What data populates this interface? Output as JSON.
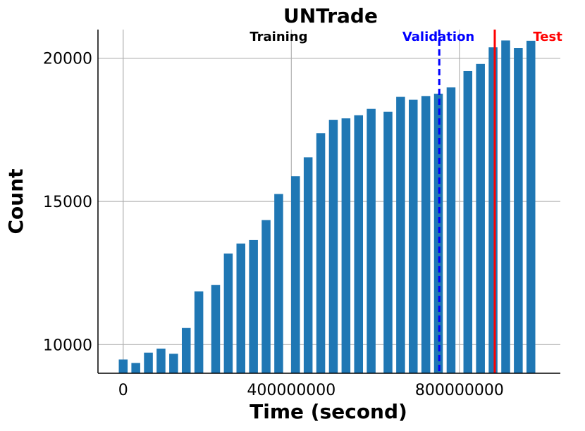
{
  "chart_data": {
    "type": "bar",
    "title": "UNTrade",
    "xlabel": "Time (second)",
    "ylabel": "Count",
    "xlim": [
      -60000000,
      1040000000
    ],
    "ylim": [
      9000,
      21000
    ],
    "xticks": [
      0,
      400000000,
      800000000
    ],
    "xtick_labels": [
      "0",
      "400000000",
      "800000000"
    ],
    "yticks": [
      10000,
      15000,
      20000
    ],
    "ytick_labels": [
      "10000",
      "15000",
      "20000"
    ],
    "grid": true,
    "bar_color": "#1f77b4",
    "bar_width": 21000000,
    "x": [
      0,
      30000000,
      60000000,
      90000000,
      120000000,
      150000000,
      180000000,
      220000000,
      250000000,
      280000000,
      310000000,
      340000000,
      370000000,
      410000000,
      440000000,
      470000000,
      500000000,
      530000000,
      560000000,
      590000000,
      630000000,
      660000000,
      690000000,
      720000000,
      750000000,
      780000000,
      820000000,
      850000000,
      880000000,
      910000000,
      940000000,
      970000000
    ],
    "values": [
      9480,
      9360,
      9720,
      9860,
      9680,
      10580,
      11860,
      12080,
      13180,
      13530,
      13650,
      14350,
      15260,
      15880,
      16540,
      17380,
      17850,
      17900,
      18010,
      18230,
      18130,
      18650,
      18550,
      18680,
      18760,
      18980,
      19550,
      19800,
      20380,
      20620,
      20360,
      20610
    ],
    "annotations": [
      {
        "text": "Training",
        "x": 370000000,
        "color": "#000000"
      },
      {
        "text": "Validation",
        "x": 750000000,
        "color": "#0000ff"
      },
      {
        "text": "Test",
        "x": 1010000000,
        "color": "#ff0000"
      }
    ],
    "vlines": [
      {
        "x": 752000000,
        "color": "#0000ff",
        "style": "dashed"
      },
      {
        "x": 884000000,
        "color": "#ff0000",
        "style": "solid"
      }
    ]
  }
}
